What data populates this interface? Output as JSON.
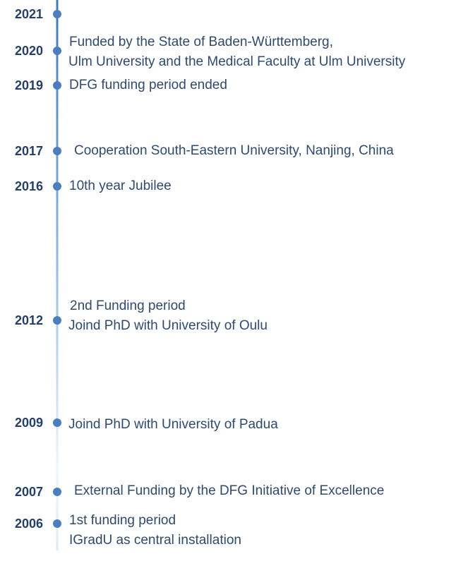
{
  "timeline": {
    "events": [
      {
        "year": "2021",
        "lines": []
      },
      {
        "year": "2020",
        "lines": [
          "Funded by the State of Baden-Württemberg,",
          "Ulm University and the Medical Faculty at Ulm University"
        ]
      },
      {
        "year": "2019",
        "lines": [
          "DFG funding period ended"
        ]
      },
      {
        "year": "2017",
        "lines": [
          "Cooperation South-Eastern University, Nanjing, China"
        ]
      },
      {
        "year": "2016",
        "lines": [
          "10th year Jubilee"
        ]
      },
      {
        "year": "2012",
        "lines": [
          "2nd Funding period",
          "Joind PhD with University of Oulu"
        ]
      },
      {
        "year": "2009",
        "lines": [
          "Joind PhD with University of Padua"
        ]
      },
      {
        "year": "2007",
        "lines": [
          "External Funding by the DFG Initiative of Excellence"
        ]
      },
      {
        "year": "2006",
        "lines": [
          "1st funding period",
          "IGradU as central installation"
        ]
      }
    ]
  }
}
